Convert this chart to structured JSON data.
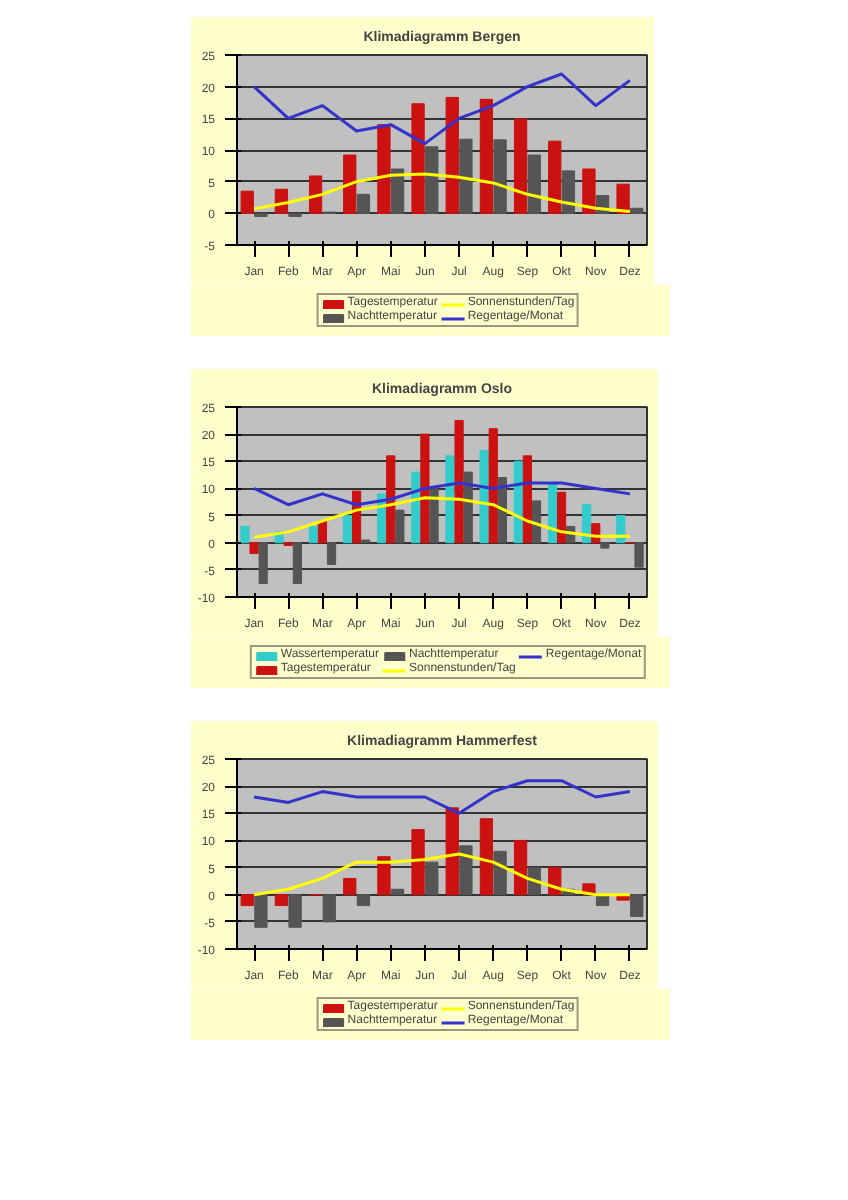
{
  "chart_data": [
    {
      "type": "bar",
      "title": "Klimadiagramm Bergen",
      "categories": [
        "Jan",
        "Feb",
        "Mar",
        "Apr",
        "Mai",
        "Jun",
        "Jul",
        "Aug",
        "Sep",
        "Okt",
        "Nov",
        "Dez"
      ],
      "ylim": [
        -5,
        25
      ],
      "yticks": [
        -5,
        0,
        5,
        10,
        15,
        20,
        25
      ],
      "grid": "y",
      "legend": "bottom",
      "series": [
        {
          "name": "Tagestemperatur",
          "color": "#cc1111",
          "values": [
            3.5,
            3.8,
            5.9,
            9.2,
            14,
            17.3,
            18.3,
            18,
            14.9,
            11.4,
            7,
            4.6
          ]
        },
        {
          "name": "Nachttemperatur",
          "color": "#555555",
          "values": [
            -0.5,
            -0.5,
            0.2,
            3,
            7,
            10.5,
            11.7,
            11.6,
            9.2,
            6.7,
            2.8,
            0.8
          ]
        },
        {
          "name": "Sonnenstunden/Tag",
          "type": "line",
          "color": "#ffff00",
          "values": [
            0.7,
            1.7,
            3,
            5,
            6,
            6.2,
            5.7,
            4.8,
            3,
            1.8,
            0.8,
            0.3
          ]
        },
        {
          "name": "Regentage/Monat",
          "type": "line",
          "color": "#3333cc",
          "values": [
            20,
            15,
            17,
            13,
            14,
            11,
            15,
            17,
            20,
            22,
            17,
            21
          ]
        }
      ]
    },
    {
      "type": "bar",
      "title": "Klimadiagramm Oslo",
      "categories": [
        "Jan",
        "Feb",
        "Mar",
        "Apr",
        "Mai",
        "Jun",
        "Jul",
        "Aug",
        "Sep",
        "Okt",
        "Nov",
        "Dez"
      ],
      "ylim": [
        -10,
        25
      ],
      "yticks": [
        -10,
        -5,
        0,
        5,
        10,
        15,
        20,
        25
      ],
      "grid": "y",
      "legend": "bottom",
      "series": [
        {
          "name": "Wassertemperatur",
          "color": "#33cccc",
          "values": [
            3,
            2,
            3,
            5,
            9,
            13,
            16,
            17,
            15,
            11,
            7,
            5
          ]
        },
        {
          "name": "Tagestemperatur",
          "color": "#cc1111",
          "values": [
            -2,
            -0.5,
            4,
            9.5,
            16,
            20,
            22.5,
            21,
            16,
            9.3,
            3.5,
            0
          ]
        },
        {
          "name": "Nachttemperatur",
          "color": "#555555",
          "values": [
            -7.5,
            -7.5,
            -4,
            0.5,
            6,
            10,
            13,
            12,
            7.7,
            3,
            -1,
            -4.5
          ]
        },
        {
          "name": "Sonnenstunden/Tag",
          "type": "line",
          "color": "#ffff00",
          "values": [
            1,
            2,
            4,
            6,
            7,
            8.3,
            8,
            7,
            4,
            2,
            1.2,
            1.2
          ]
        },
        {
          "name": "Regentage/Monat",
          "type": "line",
          "color": "#3333cc",
          "values": [
            10,
            7,
            9,
            7,
            8,
            10,
            11,
            10,
            11,
            11,
            10,
            9
          ]
        }
      ]
    },
    {
      "type": "bar",
      "title": "Klimadiagramm Hammerfest",
      "categories": [
        "Jan",
        "Feb",
        "Mar",
        "Apr",
        "Mai",
        "Jun",
        "Jul",
        "Aug",
        "Sep",
        "Okt",
        "Nov",
        "Dez"
      ],
      "ylim": [
        -10,
        25
      ],
      "yticks": [
        -10,
        -5,
        0,
        5,
        10,
        15,
        20,
        25
      ],
      "grid": "y",
      "legend": "bottom",
      "series": [
        {
          "name": "Tagestemperatur",
          "color": "#cc1111",
          "values": [
            -2,
            -2,
            0,
            3,
            7,
            12,
            16,
            14,
            10,
            5,
            2,
            -1
          ]
        },
        {
          "name": "Nachttemperatur",
          "color": "#555555",
          "values": [
            -6,
            -6,
            -5,
            -2,
            1,
            6,
            9,
            8,
            5,
            1,
            -2,
            -4
          ]
        },
        {
          "name": "Sonnenstunden/Tag",
          "type": "line",
          "color": "#ffff00",
          "values": [
            0,
            1,
            3,
            6,
            6,
            6.5,
            7.5,
            6,
            3,
            1,
            0,
            0
          ]
        },
        {
          "name": "Regentage/Monat",
          "type": "line",
          "color": "#3333cc",
          "values": [
            18,
            17,
            19,
            18,
            18,
            18,
            15,
            19,
            21,
            21,
            18,
            19
          ]
        }
      ]
    }
  ]
}
